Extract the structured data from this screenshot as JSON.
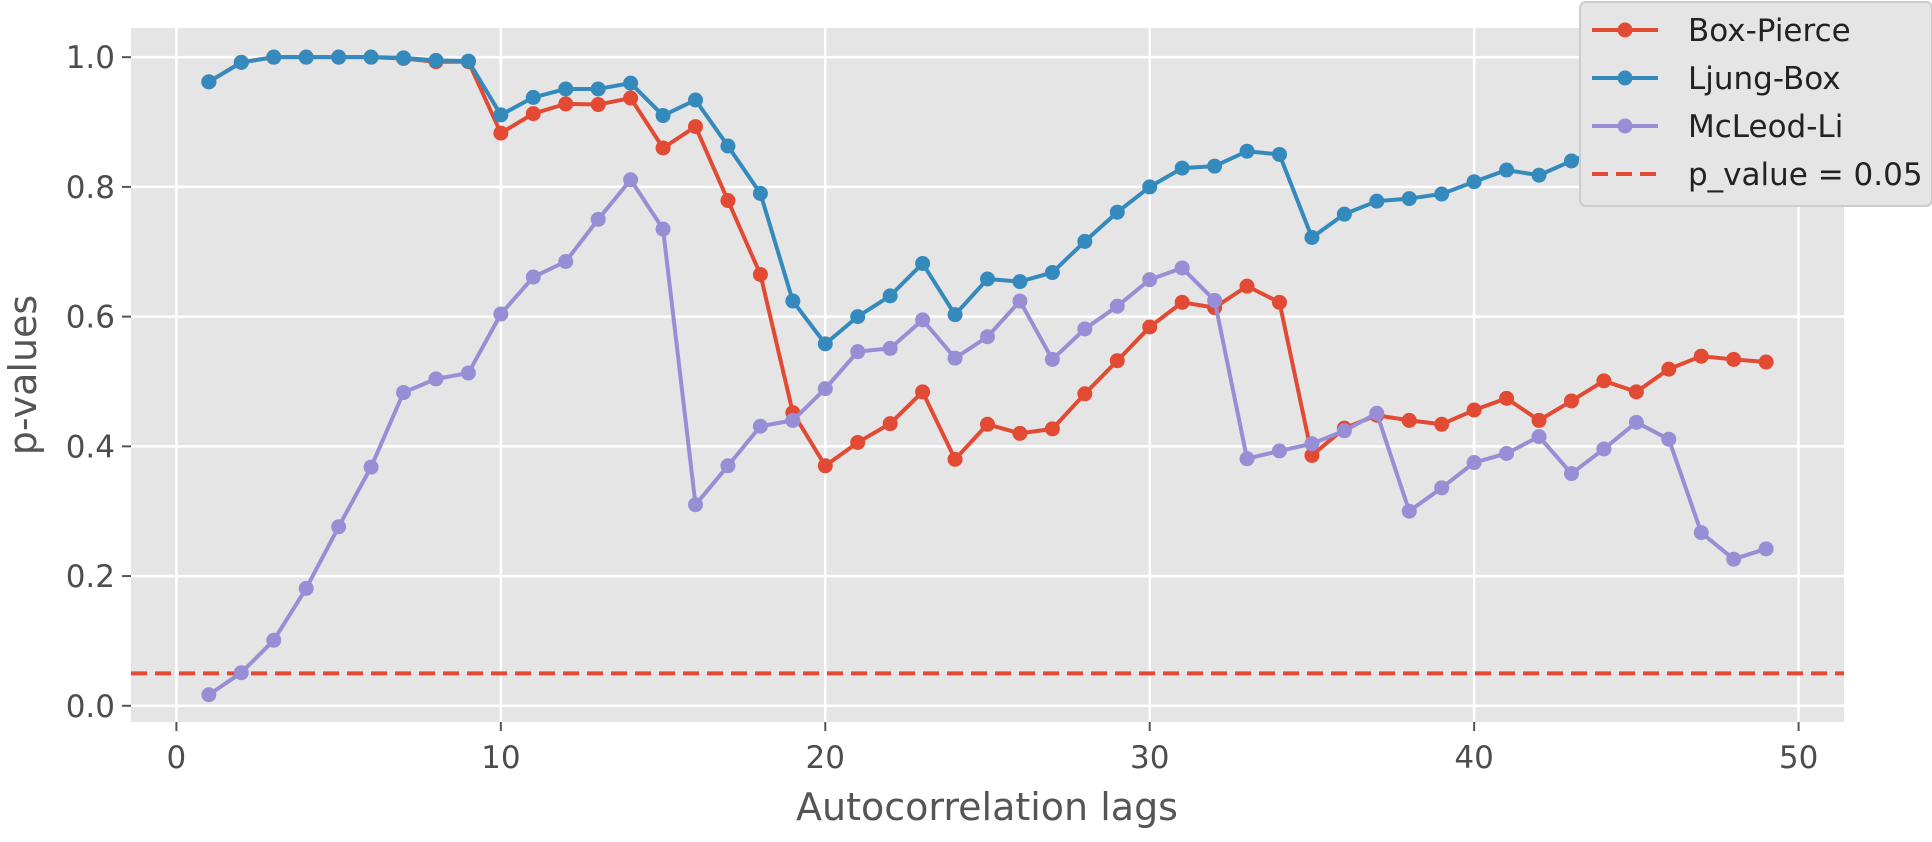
{
  "chart_data": {
    "type": "line",
    "xlabel": "Autocorrelation lags",
    "ylabel": "p-values",
    "xlim": [
      -1.4,
      51.4
    ],
    "ylim": [
      -0.025,
      1.045
    ],
    "x_ticks": [
      0,
      10,
      20,
      30,
      40,
      50
    ],
    "y_ticks": [
      0.0,
      0.2,
      0.4,
      0.6,
      0.8,
      1.0
    ],
    "x_tick_labels": [
      "0",
      "10",
      "20",
      "30",
      "40",
      "50"
    ],
    "y_tick_labels": [
      "0.0",
      "0.2",
      "0.4",
      "0.6",
      "0.8",
      "1.0"
    ],
    "grid": true,
    "legend_position": "top-right",
    "x": [
      1,
      2,
      3,
      4,
      5,
      6,
      7,
      8,
      9,
      10,
      11,
      12,
      13,
      14,
      15,
      16,
      17,
      18,
      19,
      20,
      21,
      22,
      23,
      24,
      25,
      26,
      27,
      28,
      29,
      30,
      31,
      32,
      33,
      34,
      35,
      36,
      37,
      38,
      39,
      40,
      41,
      42,
      43,
      44,
      45,
      46,
      47,
      48,
      49
    ],
    "series": [
      {
        "name": "Box-Pierce",
        "color": "#E24A33",
        "values": [
          0.962,
          0.992,
          1.0,
          1.0,
          1.0,
          1.0,
          0.998,
          0.993,
          0.993,
          0.883,
          0.913,
          0.928,
          0.927,
          0.937,
          0.86,
          0.893,
          0.779,
          0.665,
          0.452,
          0.37,
          0.406,
          0.435,
          0.484,
          0.38,
          0.434,
          0.42,
          0.427,
          0.481,
          0.532,
          0.584,
          0.622,
          0.614,
          0.647,
          0.622,
          0.386,
          0.428,
          0.448,
          0.44,
          0.434,
          0.456,
          0.474,
          0.44,
          0.47,
          0.501,
          0.484,
          0.519,
          0.539,
          0.534,
          0.53
        ]
      },
      {
        "name": "Ljung-Box",
        "color": "#348ABD",
        "values": [
          0.962,
          0.992,
          1.0,
          1.0,
          1.0,
          1.0,
          0.999,
          0.995,
          0.994,
          0.911,
          0.938,
          0.951,
          0.951,
          0.96,
          0.91,
          0.934,
          0.863,
          0.79,
          0.624,
          0.558,
          0.6,
          0.632,
          0.682,
          0.603,
          0.658,
          0.654,
          0.668,
          0.716,
          0.761,
          0.8,
          0.829,
          0.832,
          0.855,
          0.85,
          0.722,
          0.758,
          0.778,
          0.782,
          0.789,
          0.808,
          0.826,
          0.818,
          0.84,
          0.86,
          0.861,
          0.88,
          0.891,
          0.902,
          0.905
        ]
      },
      {
        "name": "McLeod-Li",
        "color": "#988ED5",
        "values": [
          0.017,
          0.051,
          0.101,
          0.181,
          0.276,
          0.368,
          0.483,
          0.504,
          0.513,
          0.604,
          0.661,
          0.685,
          0.75,
          0.811,
          0.735,
          0.31,
          0.37,
          0.431,
          0.44,
          0.489,
          0.546,
          0.551,
          0.595,
          0.536,
          0.569,
          0.624,
          0.534,
          0.581,
          0.616,
          0.657,
          0.675,
          0.625,
          0.381,
          0.393,
          0.404,
          0.424,
          0.451,
          0.3,
          0.336,
          0.375,
          0.389,
          0.415,
          0.358,
          0.396,
          0.437,
          0.411,
          0.267,
          0.226,
          0.242
        ]
      }
    ],
    "reference_line": {
      "name": "p_value = 0.05",
      "value": 0.05,
      "color": "#E24A33",
      "style": "dashed"
    }
  }
}
